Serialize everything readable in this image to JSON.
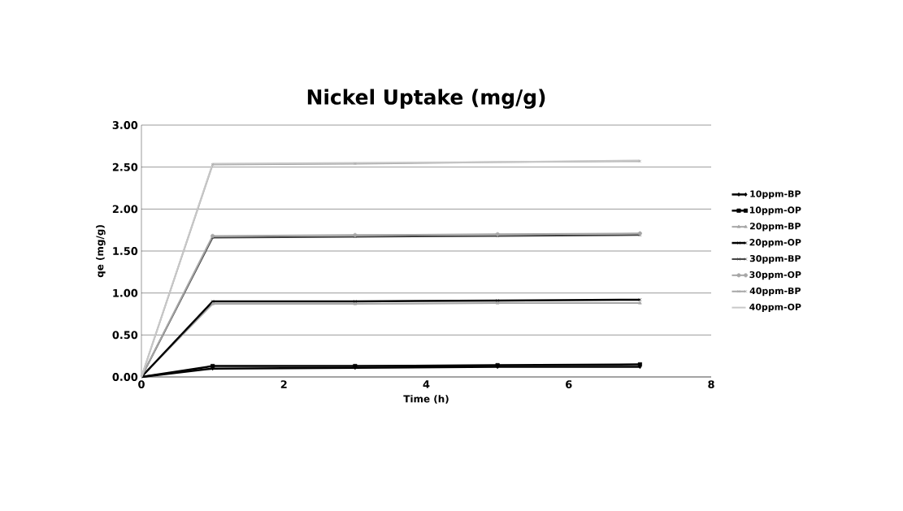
{
  "chart_data": {
    "type": "line",
    "title": "Nickel Uptake (mg/g)",
    "xlabel": "Time (h)",
    "ylabel": "qe (mg/g)",
    "x": [
      0,
      1,
      3,
      5,
      7
    ],
    "series": [
      {
        "name": "10ppm-BP",
        "color": "#000000",
        "marker": "diamond",
        "values": [
          0,
          0.1,
          0.11,
          0.12,
          0.12
        ]
      },
      {
        "name": "10ppm-OP",
        "color": "#000000",
        "marker": "square",
        "values": [
          0,
          0.13,
          0.13,
          0.14,
          0.15
        ]
      },
      {
        "name": "20ppm-BP",
        "color": "#a6a6a6",
        "marker": "triangle",
        "values": [
          0,
          0.87,
          0.87,
          0.88,
          0.88
        ]
      },
      {
        "name": "20ppm-OP",
        "color": "#000000",
        "marker": "cross",
        "values": [
          0,
          0.9,
          0.9,
          0.91,
          0.92
        ]
      },
      {
        "name": "30ppm-BP",
        "color": "#404040",
        "marker": "cross",
        "values": [
          0,
          1.66,
          1.67,
          1.68,
          1.69
        ]
      },
      {
        "name": "30ppm-OP",
        "color": "#a6a6a6",
        "marker": "circle",
        "values": [
          0,
          1.68,
          1.69,
          1.7,
          1.71
        ]
      },
      {
        "name": "40ppm-BP",
        "color": "#a6a6a6",
        "marker": "cross",
        "values": [
          0,
          2.53,
          2.54,
          2.56,
          2.57
        ]
      },
      {
        "name": "40ppm-OP",
        "color": "#c8c8c8",
        "marker": "none",
        "values": [
          0,
          2.54,
          2.55,
          2.56,
          2.58
        ]
      }
    ],
    "xlim": [
      0,
      8
    ],
    "xticks": [
      0,
      2,
      4,
      6,
      8
    ],
    "ylim": [
      0,
      3
    ],
    "yticks": [
      {
        "value": 0,
        "label": "0.00"
      },
      {
        "value": 0.5,
        "label": "0.50"
      },
      {
        "value": 1,
        "label": "1.00"
      },
      {
        "value": 1.5,
        "label": "1.50"
      },
      {
        "value": 2,
        "label": "2.00"
      },
      {
        "value": 2.5,
        "label": "2.50"
      },
      {
        "value": 3,
        "label": "3.00"
      }
    ],
    "grid": "y",
    "legend": "right",
    "line_style": "solid"
  }
}
